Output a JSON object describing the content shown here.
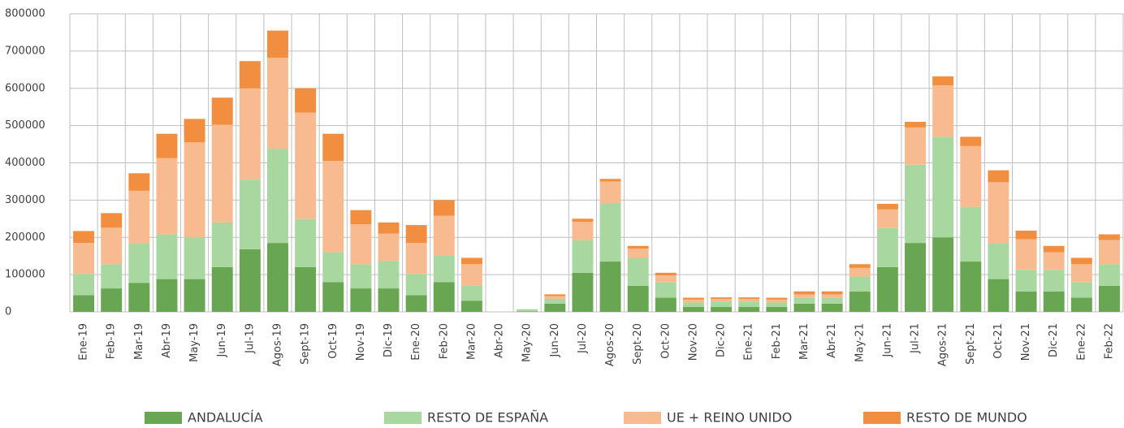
{
  "chart_data": {
    "type": "stacked_bar",
    "categories": [
      "Ene-19",
      "Feb-19",
      "Mar-19",
      "Abr-19",
      "May-19",
      "Jun-19",
      "Jul-19",
      "Agos-19",
      "Sept-19",
      "Oct-19",
      "Nov-19",
      "Dic-19",
      "Ene-20",
      "Feb-20",
      "Mar-20",
      "Abr-20",
      "May-20",
      "Jun-20",
      "Jul-20",
      "Agos-20",
      "Sept-20",
      "Oct-20",
      "Nov-20",
      "Dic-20",
      "Ene-21",
      "Feb-21",
      "Mar-21",
      "Abr-21",
      "May-21",
      "Jun-21",
      "Jul-21",
      "Agos-21",
      "Sept-21",
      "Oct-21",
      "Nov-21",
      "Dic-21",
      "Ene-22",
      "Feb-22"
    ],
    "series": [
      {
        "name": "ANDALUCÍA",
        "color": "#68a651",
        "values": [
          45000,
          63000,
          78000,
          88000,
          88000,
          120000,
          168000,
          185000,
          120000,
          80000,
          63000,
          63000,
          45000,
          80000,
          30000,
          0,
          1000,
          22000,
          105000,
          135000,
          70000,
          38000,
          13000,
          13000,
          13000,
          13000,
          22000,
          22000,
          55000,
          120000,
          185000,
          200000,
          135000,
          88000,
          55000,
          55000,
          38000,
          70000
        ]
      },
      {
        "name": "RESTO DE ESPAÑA",
        "color": "#a8d8a0",
        "values": [
          57000,
          65000,
          106000,
          120000,
          112000,
          120000,
          187000,
          253000,
          130000,
          80000,
          65000,
          74000,
          57000,
          72000,
          40000,
          0,
          6000,
          13000,
          87000,
          157000,
          75000,
          42000,
          12000,
          15000,
          15000,
          12000,
          16000,
          16000,
          40000,
          105000,
          210000,
          270000,
          147000,
          97000,
          58000,
          58000,
          42000,
          58000
        ]
      },
      {
        "name": "UE + REINO UNIDO",
        "color": "#f8bb8f",
        "values": [
          83000,
          98000,
          141000,
          205000,
          255000,
          262000,
          245000,
          244000,
          285000,
          245000,
          107000,
          73000,
          83000,
          106000,
          58000,
          0,
          0,
          7000,
          50000,
          58000,
          25000,
          18000,
          8000,
          7000,
          7000,
          8000,
          9000,
          9000,
          23000,
          50000,
          100000,
          138000,
          163000,
          163000,
          82000,
          47000,
          48000,
          65000
        ]
      },
      {
        "name": "RESTO DE MUNDO",
        "color": "#f28e3f",
        "values": [
          32000,
          39000,
          47000,
          65000,
          63000,
          73000,
          73000,
          73000,
          65000,
          73000,
          38000,
          30000,
          48000,
          42000,
          17000,
          0,
          0,
          5000,
          8000,
          7000,
          7000,
          7000,
          5000,
          4000,
          4000,
          5000,
          8000,
          8000,
          10000,
          15000,
          15000,
          24000,
          25000,
          32000,
          23000,
          17000,
          17000,
          15000
        ]
      }
    ],
    "ylim": [
      0,
      800000
    ],
    "yticks": [
      0,
      100000,
      200000,
      300000,
      400000,
      500000,
      600000,
      700000,
      800000
    ],
    "grid": true
  }
}
